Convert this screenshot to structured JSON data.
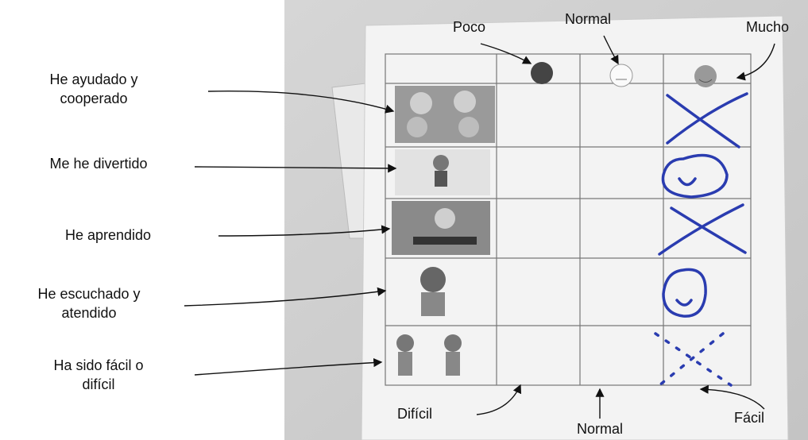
{
  "column_labels": [
    "Poco",
    "Normal",
    "Mucho"
  ],
  "row_labels": [
    {
      "lines": [
        "He ayudado y",
        "cooperado"
      ]
    },
    {
      "lines": [
        "Me he divertido"
      ]
    },
    {
      "lines": [
        "He aprendido"
      ]
    },
    {
      "lines": [
        "He escuchado y",
        "atendido"
      ]
    },
    {
      "lines": [
        "Ha sido fácil o",
        "difícil"
      ]
    }
  ],
  "bottom_labels": [
    "Difícil",
    "Normal",
    "Fácil"
  ]
}
